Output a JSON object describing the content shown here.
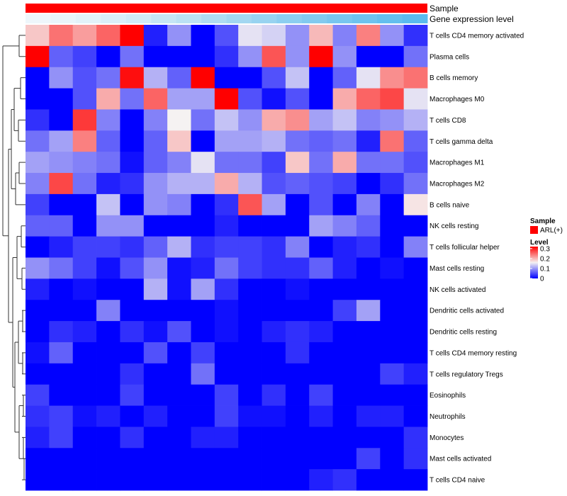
{
  "chart_data": {
    "type": "heatmap",
    "annotations": {
      "sample_label": "Sample",
      "expression_label": "Gene expression level",
      "expression_colors": [
        "#eef6fb",
        "#e9f5fa",
        "#e2f2f9",
        "#daeef8",
        "#d1ebf7",
        "#c6e6f5",
        "#bbe2f4",
        "#afdcf2",
        "#a3d7f1",
        "#98d3f0",
        "#8ccef0",
        "#82caef",
        "#78c6ef",
        "#6ec2ee",
        "#64bfee",
        "#5bbbee"
      ]
    },
    "rows": [
      {
        "label": "T cells CD4 memory activated",
        "values": [
          0.18,
          0.24,
          0.21,
          0.25,
          0.32,
          0.02,
          0.09,
          0.0,
          0.05,
          0.14,
          0.13,
          0.09,
          0.19,
          0.08,
          0.23,
          0.09,
          0.03
        ]
      },
      {
        "label": "Plasma cells",
        "values": [
          0.32,
          0.06,
          0.04,
          0.0,
          0.07,
          0.0,
          0.0,
          0.0,
          0.03,
          0.09,
          0.26,
          0.09,
          0.32,
          0.09,
          0.0,
          0.0,
          0.07
        ]
      },
      {
        "label": "B cells memory",
        "values": [
          0.0,
          0.09,
          0.05,
          0.07,
          0.31,
          0.11,
          0.06,
          0.32,
          0.0,
          0.0,
          0.05,
          0.12,
          0.0,
          0.06,
          0.14,
          0.22,
          0.24
        ]
      },
      {
        "label": "Macrophages M0",
        "values": [
          0.0,
          0.0,
          0.05,
          0.2,
          0.07,
          0.25,
          0.1,
          0.1,
          0.32,
          0.05,
          0.01,
          0.05,
          0.0,
          0.2,
          0.25,
          0.27,
          0.14
        ]
      },
      {
        "label": "T cells CD8",
        "values": [
          0.03,
          0.0,
          0.28,
          0.08,
          0.0,
          0.08,
          0.15,
          0.07,
          0.12,
          0.09,
          0.2,
          0.22,
          0.1,
          0.12,
          0.08,
          0.09,
          0.11
        ]
      },
      {
        "label": "T cells gamma delta",
        "values": [
          0.07,
          0.1,
          0.23,
          0.06,
          0.0,
          0.06,
          0.18,
          0.0,
          0.1,
          0.1,
          0.11,
          0.07,
          0.06,
          0.07,
          0.02,
          0.24,
          0.06
        ]
      },
      {
        "label": "Macrophages M1",
        "values": [
          0.1,
          0.09,
          0.08,
          0.07,
          0.01,
          0.06,
          0.08,
          0.14,
          0.07,
          0.07,
          0.04,
          0.18,
          0.07,
          0.2,
          0.07,
          0.07,
          0.05
        ]
      },
      {
        "label": "Macrophages M2",
        "values": [
          0.08,
          0.27,
          0.07,
          0.02,
          0.03,
          0.09,
          0.11,
          0.11,
          0.2,
          0.11,
          0.05,
          0.06,
          0.05,
          0.04,
          0.0,
          0.03,
          0.07
        ]
      },
      {
        "label": "B cells naive",
        "values": [
          0.04,
          0.0,
          0.0,
          0.12,
          0.0,
          0.09,
          0.08,
          0.0,
          0.03,
          0.26,
          0.1,
          0.0,
          0.05,
          0.0,
          0.08,
          0.0,
          0.16
        ]
      },
      {
        "label": "NK cells resting",
        "values": [
          0.06,
          0.06,
          0.0,
          0.09,
          0.09,
          0.0,
          0.0,
          0.0,
          0.02,
          0.0,
          0.0,
          0.0,
          0.1,
          0.08,
          0.06,
          0.0,
          0.0
        ]
      },
      {
        "label": "T cells follicular helper",
        "values": [
          0.0,
          0.02,
          0.04,
          0.04,
          0.03,
          0.06,
          0.11,
          0.03,
          0.04,
          0.04,
          0.03,
          0.08,
          0.0,
          0.02,
          0.03,
          0.0,
          0.08
        ]
      },
      {
        "label": "Mast cells resting",
        "values": [
          0.09,
          0.07,
          0.04,
          0.01,
          0.05,
          0.09,
          0.01,
          0.02,
          0.07,
          0.04,
          0.03,
          0.03,
          0.06,
          0.02,
          0.0,
          0.01,
          0.0
        ]
      },
      {
        "label": "NK cells activated",
        "values": [
          0.02,
          0.0,
          0.01,
          0.0,
          0.0,
          0.11,
          0.01,
          0.1,
          0.03,
          0.0,
          0.0,
          0.01,
          0.0,
          0.0,
          0.0,
          0.0,
          0.0
        ]
      },
      {
        "label": "Dendritic cells activated",
        "values": [
          0.0,
          0.0,
          0.0,
          0.08,
          0.0,
          0.0,
          0.0,
          0.0,
          0.01,
          0.0,
          0.0,
          0.0,
          0.0,
          0.04,
          0.1,
          0.0,
          0.0
        ]
      },
      {
        "label": "Dendritic cells resting",
        "values": [
          0.0,
          0.03,
          0.02,
          0.0,
          0.03,
          0.01,
          0.05,
          0.0,
          0.01,
          0.0,
          0.02,
          0.03,
          0.02,
          0.0,
          0.0,
          0.0,
          0.0
        ]
      },
      {
        "label": "T cells CD4 memory resting",
        "values": [
          0.01,
          0.06,
          0.0,
          0.0,
          0.0,
          0.05,
          0.0,
          0.04,
          0.0,
          0.0,
          0.0,
          0.03,
          0.0,
          0.0,
          0.0,
          0.0,
          0.0
        ]
      },
      {
        "label": "T cells regulatory  Tregs",
        "values": [
          0.0,
          0.0,
          0.0,
          0.0,
          0.03,
          0.0,
          0.0,
          0.07,
          0.0,
          0.0,
          0.0,
          0.0,
          0.0,
          0.0,
          0.0,
          0.04,
          0.02
        ]
      },
      {
        "label": "Eosinophils",
        "values": [
          0.04,
          0.0,
          0.0,
          0.0,
          0.04,
          0.0,
          0.0,
          0.0,
          0.04,
          0.0,
          0.03,
          0.0,
          0.04,
          0.0,
          0.0,
          0.0,
          0.0
        ]
      },
      {
        "label": "Neutrophils",
        "values": [
          0.03,
          0.04,
          0.01,
          0.02,
          0.0,
          0.02,
          0.0,
          0.0,
          0.04,
          0.01,
          0.01,
          0.0,
          0.02,
          0.0,
          0.02,
          0.02,
          0.0
        ]
      },
      {
        "label": "Monocytes",
        "values": [
          0.02,
          0.04,
          0.0,
          0.0,
          0.03,
          0.0,
          0.0,
          0.02,
          0.02,
          0.0,
          0.0,
          0.0,
          0.0,
          0.0,
          0.0,
          0.0,
          0.03
        ]
      },
      {
        "label": "Mast cells activated",
        "values": [
          0.0,
          0.0,
          0.0,
          0.0,
          0.0,
          0.0,
          0.0,
          0.0,
          0.0,
          0.0,
          0.0,
          0.0,
          0.0,
          0.0,
          0.04,
          0.0,
          0.03
        ]
      },
      {
        "label": "T cells CD4 naive",
        "values": [
          0.0,
          0.0,
          0.0,
          0.0,
          0.0,
          0.0,
          0.0,
          0.0,
          0.0,
          0.0,
          0.0,
          0.0,
          0.02,
          0.03,
          0.0,
          0.0,
          0.0
        ]
      }
    ],
    "color_scale": {
      "min": 0,
      "mid": 0.15,
      "max": 0.32,
      "low_color": "#0000ff",
      "mid_color": "#f5f2f2",
      "high_color": "#ff0000"
    },
    "legend": {
      "sample_title": "Sample",
      "sample_entry": "ARL(+)",
      "sample_color": "#ff0000",
      "level_title": "Level",
      "level_ticks": [
        {
          "value": 0.3,
          "label": "0.3"
        },
        {
          "value": 0.2,
          "label": "0.2"
        },
        {
          "value": 0.1,
          "label": "0.1"
        },
        {
          "value": 0,
          "label": "0"
        }
      ]
    },
    "dendrogram": "hierarchical clustering of rows (left side)"
  }
}
